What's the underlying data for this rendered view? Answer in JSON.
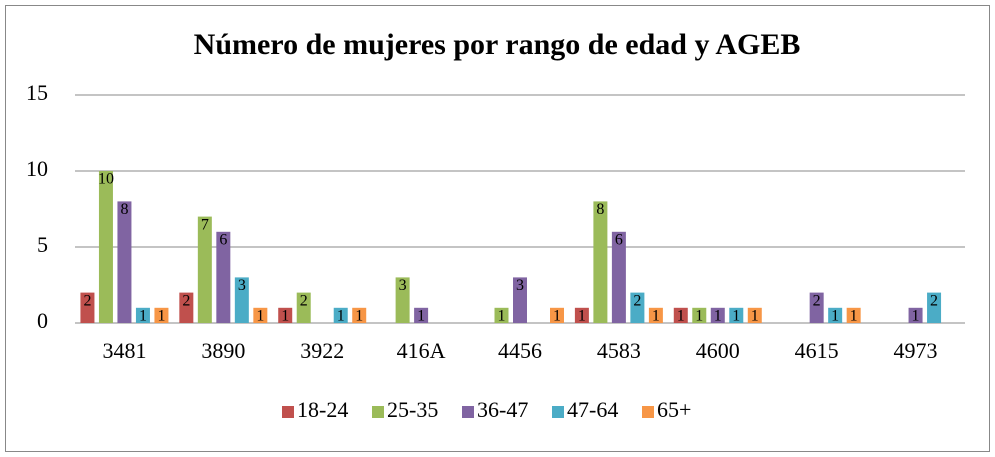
{
  "chart_data": {
    "type": "bar",
    "title": "Número de mujeres por rango de edad y  AGEB",
    "categories": [
      "3481",
      "3890",
      "3922",
      "416A",
      "4456",
      "4583",
      "4600",
      "4615",
      "4973"
    ],
    "series": [
      {
        "name": "18-24",
        "color": "#c0504d",
        "values": [
          2,
          2,
          1,
          null,
          null,
          1,
          1,
          null,
          null
        ]
      },
      {
        "name": "25-35",
        "color": "#9bbb59",
        "values": [
          10,
          7,
          2,
          3,
          1,
          8,
          1,
          null,
          null
        ]
      },
      {
        "name": "36-47",
        "color": "#8064a2",
        "values": [
          8,
          6,
          null,
          1,
          3,
          6,
          1,
          2,
          1
        ]
      },
      {
        "name": "47-64",
        "color": "#4bacc6",
        "values": [
          1,
          3,
          1,
          null,
          null,
          2,
          1,
          1,
          2
        ]
      },
      {
        "name": "65+",
        "color": "#f79646",
        "values": [
          1,
          1,
          1,
          null,
          1,
          1,
          1,
          1,
          null
        ]
      }
    ],
    "ylim": [
      0,
      15
    ],
    "yticks": [
      0,
      5,
      10,
      15
    ],
    "grid": true,
    "legend": "bottom"
  }
}
